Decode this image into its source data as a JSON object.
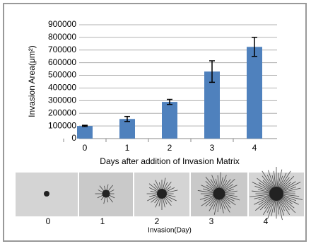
{
  "chart_data": {
    "type": "bar",
    "y_label": "Invasion Area(μm²)",
    "x_label": "Days after addition of Invasion Matrix",
    "categories": [
      "0",
      "1",
      "2",
      "3",
      "4"
    ],
    "values": [
      100000,
      155000,
      290000,
      530000,
      725000
    ],
    "errors": [
      5000,
      20000,
      20000,
      85000,
      75000
    ],
    "color": "#4f81bd",
    "ylim": [
      0,
      900000
    ],
    "yticks": [
      0,
      100000,
      200000,
      300000,
      400000,
      500000,
      600000,
      700000,
      800000,
      900000
    ],
    "grid": true
  },
  "image_strip": {
    "labels": [
      "0",
      "1",
      "2",
      "3",
      "4"
    ],
    "caption": "Invasion(Day)"
  }
}
